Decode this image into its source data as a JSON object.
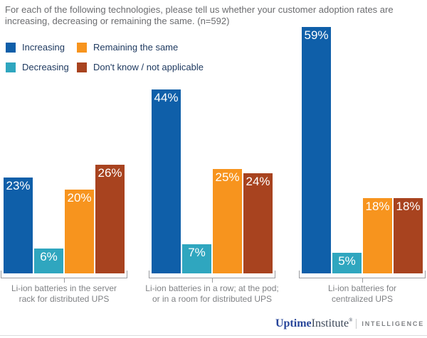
{
  "title": {
    "lines": [
      "For each of the following technologies, please tell us whether your customer adoption rates are",
      "increasing, decreasing or remaining the same. (n=592)"
    ],
    "full": "For each of the following technologies, please tell us whether your customer adoption rates are increasing, decreasing or remaining the same. (n=592)"
  },
  "legend": {
    "items": [
      {
        "label": "Increasing",
        "color": "#0F5FA9"
      },
      {
        "label": "Decreasing",
        "color": "#2FA6BF"
      },
      {
        "label": "Remaining the same",
        "color": "#F7941E"
      },
      {
        "label": "Don't know / not applicable",
        "color": "#A8431F"
      }
    ]
  },
  "chart_data": {
    "type": "bar",
    "title": "For each of the following technologies, please tell us whether your customer adoption rates are increasing, decreasing or remaining the same. (n=592)",
    "unit_suffix": "%",
    "ylim": [
      0,
      60
    ],
    "grid": false,
    "legend_position": "top-left",
    "value_labels": "inside-top",
    "categories": [
      "Li-ion batteries in the server rack for distributed UPS",
      "Li-ion batteries in a row; at the pod; or in a room for distributed UPS",
      "Li-ion batteries for centralized UPS"
    ],
    "category_label_lines": [
      [
        "Li-ion batteries in the server",
        "rack for distributed UPS"
      ],
      [
        "Li-ion batteries in a row; at the pod;",
        "or in a room for distributed UPS"
      ],
      [
        "Li-ion batteries for",
        "centralized UPS"
      ]
    ],
    "series": [
      {
        "name": "Increasing",
        "color": "#0F5FA9",
        "values": [
          23,
          44,
          59
        ]
      },
      {
        "name": "Decreasing",
        "color": "#2FA6BF",
        "values": [
          6,
          7,
          5
        ]
      },
      {
        "name": "Remaining the same",
        "color": "#F7941E",
        "values": [
          20,
          25,
          18
        ]
      },
      {
        "name": "Don't know / not applicable",
        "color": "#A8431F",
        "values": [
          26,
          24,
          18
        ]
      }
    ]
  },
  "footer": {
    "brand_bold": "Uptime",
    "brand_regular": "Institute",
    "trademark": "®",
    "division": "INTELLIGENCE"
  },
  "colors": {
    "title_text": "#6B6C6F",
    "legend_text": "#1F3A60",
    "axis_label_text": "#808285",
    "bracket": "#9A9CA0",
    "logo_blue": "#27459A",
    "logo_dark": "#3C4758",
    "intelligence_gray": "#808285",
    "rule_gray": "#DCDCDE",
    "bar_increasing": "#0F5FA9",
    "bar_decreasing": "#2FA6BF",
    "bar_remaining_the_same": "#F7941E",
    "bar_dont_know": "#A8431F"
  }
}
